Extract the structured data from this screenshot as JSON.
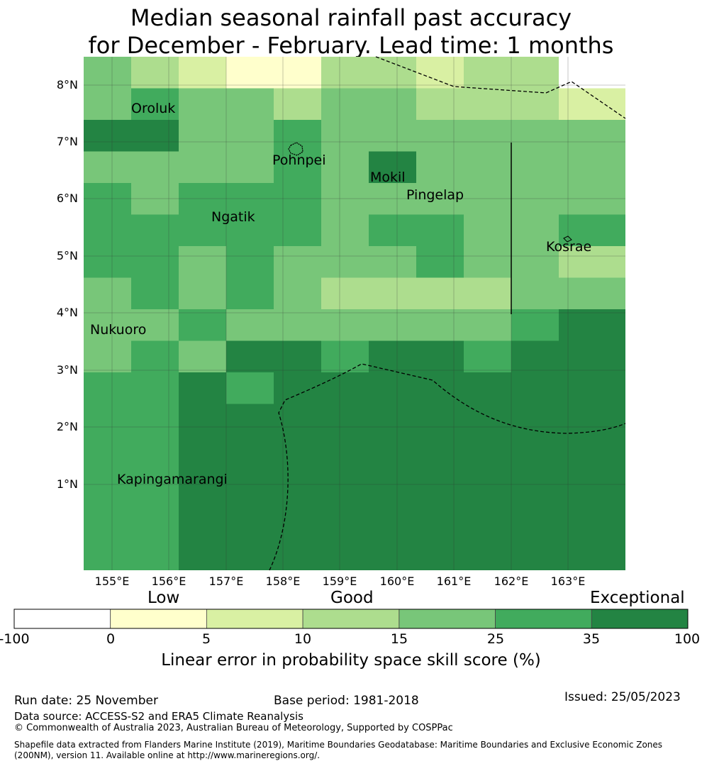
{
  "title": {
    "line1": "Median seasonal rainfall past accuracy",
    "line2": "for December - February. Lead time: 1 months"
  },
  "map": {
    "lat_labels": [
      "8°N",
      "7°N",
      "6°N",
      "5°N",
      "4°N",
      "3°N",
      "2°N",
      "1°N"
    ],
    "lon_labels": [
      "155°E",
      "156°E",
      "157°E",
      "158°E",
      "159°E",
      "160°E",
      "161°E",
      "162°E",
      "163°E"
    ],
    "places": {
      "oroluk": "Oroluk",
      "pohnpei": "Pohnpei",
      "mokil": "Mokil",
      "pingelap": "Pingelap",
      "ngatik": "Ngatik",
      "kosrae": "Kosrae",
      "nukuoro": "Nukuoro",
      "kapingamarangi": "Kapingamarangi"
    },
    "grid_categories": [
      [
        3,
        2,
        1,
        0,
        0,
        2,
        2,
        1,
        2,
        2,
        -1
      ],
      [
        3,
        4,
        3,
        3,
        2,
        3,
        3,
        2,
        2,
        2,
        1
      ],
      [
        5,
        5,
        3,
        3,
        4,
        3,
        3,
        3,
        3,
        3,
        3
      ],
      [
        3,
        3,
        3,
        3,
        4,
        3,
        5,
        3,
        3,
        3,
        3
      ],
      [
        4,
        3,
        4,
        4,
        4,
        3,
        3,
        3,
        3,
        3,
        3
      ],
      [
        4,
        4,
        4,
        4,
        4,
        3,
        4,
        4,
        3,
        3,
        4
      ],
      [
        4,
        4,
        3,
        4,
        3,
        3,
        3,
        4,
        3,
        3,
        2
      ],
      [
        3,
        4,
        3,
        4,
        3,
        2,
        2,
        2,
        2,
        3,
        3
      ],
      [
        3,
        3,
        4,
        3,
        3,
        3,
        3,
        3,
        3,
        4,
        5
      ],
      [
        3,
        4,
        3,
        5,
        5,
        4,
        5,
        5,
        4,
        5,
        5
      ],
      [
        4,
        4,
        5,
        4,
        5,
        5,
        5,
        5,
        5,
        5,
        5
      ],
      [
        4,
        4,
        5,
        5,
        5,
        5,
        5,
        5,
        5,
        5,
        5
      ]
    ]
  },
  "colorbar": {
    "colors": [
      "#ffffff",
      "#ffffcc",
      "#d9f0a3",
      "#addd8e",
      "#78c679",
      "#41ab5d",
      "#238443"
    ],
    "ticks": [
      "-100",
      "0",
      "5",
      "10",
      "15",
      "25",
      "35",
      "100"
    ],
    "categories": {
      "low": "Low",
      "good": "Good",
      "exceptional": "Exceptional"
    },
    "title": "Linear error in probability space skill score (%)"
  },
  "footer": {
    "run_date": "Run date: 25 November",
    "base_period": "Base period: 1981-2018",
    "issued": "Issued: 25/05/2023",
    "data_source": "Data source: ACCESS-S2 and ERA5 Climate Reanalysis",
    "copyright": "© Commonwealth of Australia 2023, Australian Bureau of Meteorology, Supported by COSPPac",
    "shapefile": "Shapefile data extracted from Flanders Marine Institute (2019), Maritime Boundaries Geodatabase: Maritime Boundaries and Exclusive Economic Zones (200NM), version 11. Available online at http://www.marineregions.org/."
  }
}
